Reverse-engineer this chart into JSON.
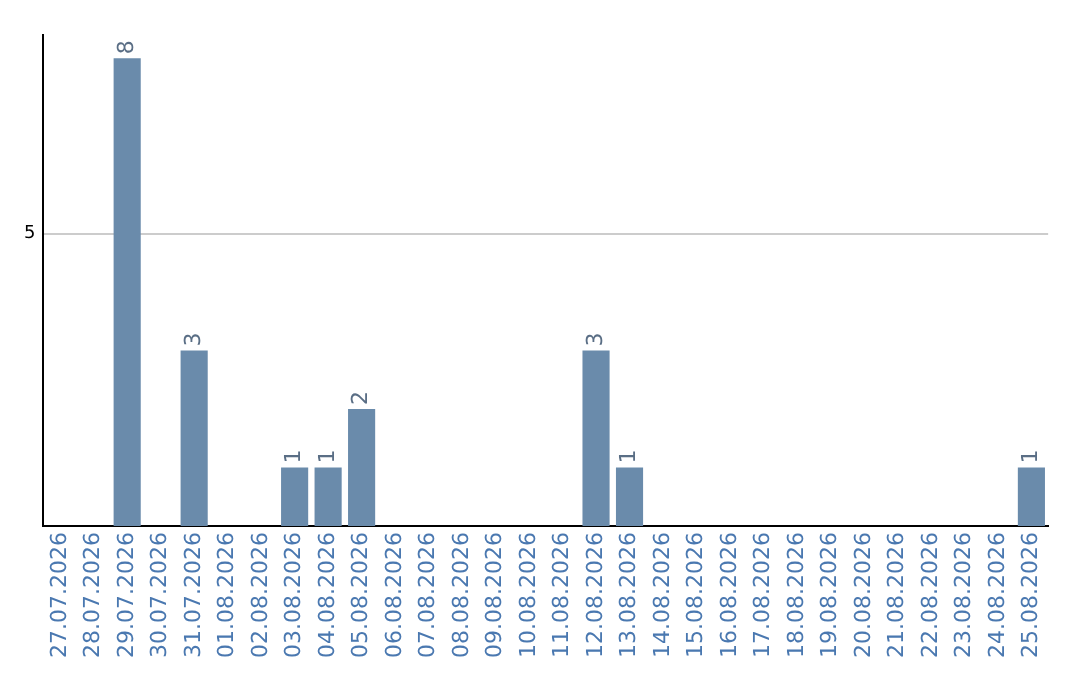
{
  "chart_data": {
    "type": "bar",
    "categories": [
      "27.07.2026",
      "28.07.2026",
      "29.07.2026",
      "30.07.2026",
      "31.07.2026",
      "01.08.2026",
      "02.08.2026",
      "03.08.2026",
      "04.08.2026",
      "05.08.2026",
      "06.08.2026",
      "07.08.2026",
      "08.08.2026",
      "09.08.2026",
      "10.08.2026",
      "11.08.2026",
      "12.08.2026",
      "13.08.2026",
      "14.08.2026",
      "15.08.2026",
      "16.08.2026",
      "17.08.2026",
      "18.08.2026",
      "19.08.2026",
      "20.08.2026",
      "21.08.2026",
      "22.08.2026",
      "23.08.2026",
      "24.08.2026",
      "25.08.2026"
    ],
    "values": [
      0,
      0,
      8,
      0,
      3,
      0,
      0,
      1,
      1,
      2,
      0,
      0,
      0,
      0,
      0,
      0,
      3,
      1,
      0,
      0,
      0,
      0,
      0,
      0,
      0,
      0,
      0,
      0,
      0,
      1
    ],
    "value_labels": [
      null,
      null,
      "8",
      null,
      "3",
      null,
      null,
      "1",
      "1",
      "2",
      null,
      null,
      null,
      null,
      null,
      null,
      "3",
      "1",
      null,
      null,
      null,
      null,
      null,
      null,
      null,
      null,
      null,
      null,
      null,
      "1"
    ],
    "color": "#6a8bab",
    "ylim": [
      0,
      8.4
    ],
    "yticks": [
      5
    ],
    "grid": "y",
    "legend": false
  }
}
